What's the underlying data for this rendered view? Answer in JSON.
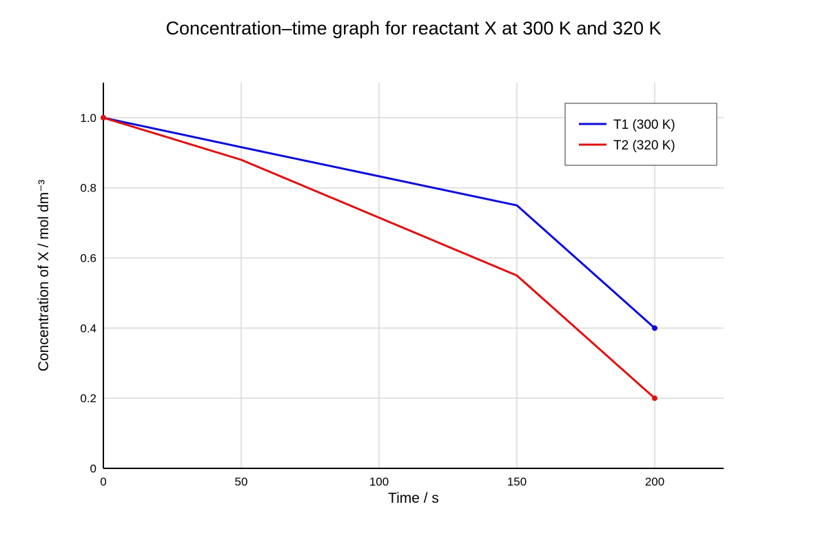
{
  "chart_data": {
    "type": "line",
    "title": "Concentration–time graph for reactant X at 300 K and 320 K",
    "xlabel": "Time / s",
    "ylabel": "Concentration of X / mol dm⁻³",
    "xlim": [
      0,
      225
    ],
    "ylim": [
      0,
      1.1
    ],
    "x_ticks": [
      "0",
      "50",
      "100",
      "150",
      "200"
    ],
    "y_ticks": [
      "0",
      "0.2",
      "0.4",
      "0.6",
      "0.8",
      "1.0"
    ],
    "grid": true,
    "legend_position": "top-right",
    "series": [
      {
        "name": "T1 (300 K)",
        "color": "#0a0adc",
        "x": [
          0,
          50,
          150,
          200
        ],
        "y": [
          1.0,
          0.916,
          0.75,
          0.4
        ]
      },
      {
        "name": "T2 (320 K)",
        "color": "#e01010",
        "x": [
          0,
          50,
          150,
          200
        ],
        "y": [
          1.0,
          0.88,
          0.55,
          0.2
        ]
      }
    ]
  }
}
